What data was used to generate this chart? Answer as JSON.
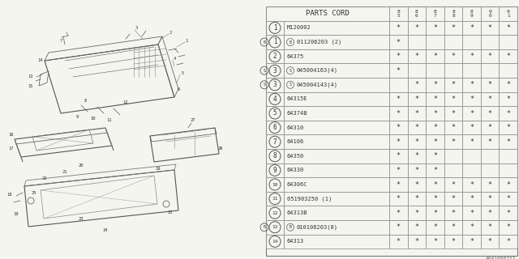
{
  "diagram_code": "A641000157",
  "table_rows": [
    {
      "num": "1",
      "prefix": "",
      "part": "M120002",
      "marks": [
        1,
        1,
        1,
        1,
        1,
        1,
        1
      ]
    },
    {
      "num": "1",
      "prefix": "B",
      "part": "011206203 (2)",
      "marks": [
        1,
        0,
        0,
        0,
        0,
        0,
        0
      ]
    },
    {
      "num": "2",
      "prefix": "",
      "part": "64375",
      "marks": [
        1,
        1,
        1,
        1,
        1,
        1,
        1
      ]
    },
    {
      "num": "3",
      "prefix": "S",
      "part": "045004163(4)",
      "marks": [
        1,
        0,
        0,
        0,
        0,
        0,
        0
      ]
    },
    {
      "num": "3",
      "prefix": "S",
      "part": "045004143(4)",
      "marks": [
        0,
        1,
        1,
        1,
        1,
        1,
        1
      ]
    },
    {
      "num": "4",
      "prefix": "",
      "part": "64315E",
      "marks": [
        1,
        1,
        1,
        1,
        1,
        1,
        1
      ]
    },
    {
      "num": "5",
      "prefix": "",
      "part": "64374B",
      "marks": [
        1,
        1,
        1,
        1,
        1,
        1,
        1
      ]
    },
    {
      "num": "6",
      "prefix": "",
      "part": "64310",
      "marks": [
        1,
        1,
        1,
        1,
        1,
        1,
        1
      ]
    },
    {
      "num": "7",
      "prefix": "",
      "part": "64106",
      "marks": [
        1,
        1,
        1,
        1,
        1,
        1,
        1
      ]
    },
    {
      "num": "8",
      "prefix": "",
      "part": "64350",
      "marks": [
        1,
        1,
        1,
        0,
        0,
        0,
        0
      ]
    },
    {
      "num": "9",
      "prefix": "",
      "part": "64330",
      "marks": [
        1,
        1,
        1,
        0,
        0,
        0,
        0
      ]
    },
    {
      "num": "10",
      "prefix": "",
      "part": "64306C",
      "marks": [
        1,
        1,
        1,
        1,
        1,
        1,
        1
      ]
    },
    {
      "num": "11",
      "prefix": "",
      "part": "051903250 (1)",
      "marks": [
        1,
        1,
        1,
        1,
        1,
        1,
        1
      ]
    },
    {
      "num": "12",
      "prefix": "",
      "part": "64313B",
      "marks": [
        1,
        1,
        1,
        1,
        1,
        1,
        1
      ]
    },
    {
      "num": "13",
      "prefix": "B",
      "part": "010108203(8)",
      "marks": [
        1,
        1,
        1,
        1,
        1,
        1,
        1
      ]
    },
    {
      "num": "14",
      "prefix": "",
      "part": "64313",
      "marks": [
        1,
        1,
        1,
        1,
        1,
        1,
        1
      ]
    }
  ],
  "year_cols": [
    "85",
    "86",
    "87",
    "88",
    "89",
    "90",
    "91"
  ],
  "bg_color": "#f5f5f0",
  "lc": "#999999",
  "tc": "#333333"
}
